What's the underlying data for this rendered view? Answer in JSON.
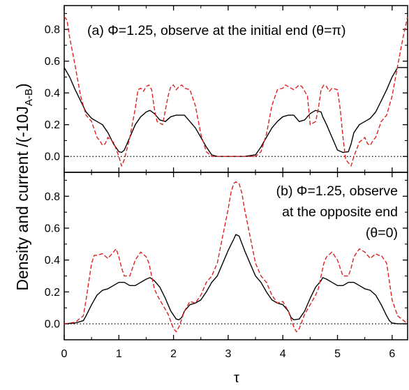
{
  "chart_data": [
    {
      "type": "line",
      "annotation": "(a) Φ=1.25, observe at the initial end (θ=π)",
      "annotation_lines": [
        "(a) Φ=1.25, observe at the initial end (θ=π)"
      ],
      "xlim": [
        0,
        6.283
      ],
      "ylim": [
        -0.1,
        0.95
      ],
      "xticks": [
        0,
        1,
        2,
        3,
        4,
        5,
        6
      ],
      "xtick_labels": [
        "",
        "",
        "",
        "",
        "",
        "",
        ""
      ],
      "yticks": [
        0.0,
        0.2,
        0.4,
        0.6,
        0.8
      ],
      "ytick_labels": [
        "0.0",
        "0.2",
        "0.4",
        "0.6",
        "0.8"
      ],
      "reference_line": {
        "y": 0,
        "style": "dotted"
      },
      "series": [
        {
          "color": "#000000",
          "dash": "solid",
          "width": 1.4,
          "x": [
            0,
            0.1,
            0.2,
            0.3,
            0.4,
            0.5,
            0.6,
            0.7,
            0.8,
            0.9,
            1.0,
            1.05,
            1.1,
            1.2,
            1.3,
            1.4,
            1.5,
            1.57,
            1.65,
            1.75,
            1.85,
            1.95,
            2.05,
            2.1,
            2.2,
            2.3,
            2.4,
            2.5,
            2.6,
            2.7,
            2.8,
            3.0,
            3.14,
            3.3,
            3.5,
            3.6,
            3.7,
            3.8,
            3.9,
            4.0,
            4.1,
            4.2,
            4.3,
            4.4,
            4.5,
            4.6,
            4.7,
            4.73,
            4.8,
            4.9,
            5.0,
            5.1,
            5.2,
            5.25,
            5.3,
            5.4,
            5.5,
            5.6,
            5.7,
            5.8,
            5.9,
            6.0,
            6.1,
            6.2,
            6.283
          ],
          "y": [
            0.56,
            0.5,
            0.42,
            0.35,
            0.28,
            0.24,
            0.22,
            0.2,
            0.15,
            0.08,
            0.03,
            0.025,
            0.04,
            0.12,
            0.2,
            0.25,
            0.28,
            0.29,
            0.27,
            0.23,
            0.22,
            0.25,
            0.26,
            0.26,
            0.26,
            0.22,
            0.18,
            0.12,
            0.06,
            0.01,
            0.0,
            0.0,
            0.0,
            0.0,
            0.01,
            0.06,
            0.12,
            0.18,
            0.22,
            0.25,
            0.26,
            0.26,
            0.22,
            0.23,
            0.27,
            0.29,
            0.28,
            0.25,
            0.2,
            0.12,
            0.04,
            0.025,
            0.03,
            0.08,
            0.15,
            0.2,
            0.22,
            0.24,
            0.28,
            0.35,
            0.42,
            0.5,
            0.56,
            0.56,
            0.56
          ]
        },
        {
          "color": "#e02020",
          "dash": "dashed",
          "width": 1.4,
          "x": [
            0,
            0.05,
            0.1,
            0.2,
            0.3,
            0.4,
            0.5,
            0.6,
            0.65,
            0.7,
            0.75,
            0.8,
            0.9,
            1.0,
            1.05,
            1.1,
            1.2,
            1.3,
            1.35,
            1.4,
            1.45,
            1.5,
            1.55,
            1.6,
            1.65,
            1.7,
            1.8,
            1.9,
            1.95,
            2.0,
            2.05,
            2.1,
            2.15,
            2.2,
            2.3,
            2.4,
            2.5,
            2.6,
            2.7,
            2.8,
            3.0,
            3.14,
            3.3,
            3.5,
            3.6,
            3.7,
            3.8,
            3.9,
            4.0,
            4.05,
            4.1,
            4.2,
            4.3,
            4.35,
            4.45,
            4.5,
            4.6,
            4.65,
            4.7,
            4.75,
            4.8,
            4.85,
            4.9,
            5.0,
            5.05,
            5.1,
            5.15,
            5.25,
            5.3,
            5.4,
            5.5,
            5.55,
            5.6,
            5.65,
            5.7,
            5.8,
            5.9,
            6.0,
            6.1,
            6.2,
            6.283
          ],
          "y": [
            0.88,
            0.86,
            0.75,
            0.57,
            0.38,
            0.26,
            0.22,
            0.12,
            0.1,
            0.07,
            0.08,
            0.12,
            0.09,
            0.0,
            -0.06,
            -0.02,
            0.12,
            0.3,
            0.42,
            0.43,
            0.41,
            0.44,
            0.45,
            0.42,
            0.3,
            0.22,
            0.2,
            0.38,
            0.44,
            0.45,
            0.42,
            0.44,
            0.45,
            0.43,
            0.42,
            0.32,
            0.14,
            0.03,
            0.0,
            0.0,
            0.0,
            0.0,
            0.0,
            0.0,
            0.03,
            0.14,
            0.32,
            0.42,
            0.43,
            0.45,
            0.44,
            0.42,
            0.45,
            0.44,
            0.38,
            0.2,
            0.22,
            0.3,
            0.42,
            0.45,
            0.44,
            0.41,
            0.43,
            0.42,
            0.3,
            0.12,
            -0.02,
            -0.06,
            0.0,
            0.09,
            0.12,
            0.08,
            0.07,
            0.1,
            0.12,
            0.22,
            0.26,
            0.38,
            0.57,
            0.75,
            0.88
          ]
        }
      ]
    },
    {
      "type": "line",
      "annotation": "(b) Φ=1.25, observe at the opposite end (θ=0)",
      "annotation_lines": [
        "(b) Φ=1.25, observe",
        "at the opposite end",
        "(θ=0)"
      ],
      "xlim": [
        0,
        6.283
      ],
      "ylim": [
        -0.1,
        0.95
      ],
      "xticks": [
        0,
        1,
        2,
        3,
        4,
        5,
        6
      ],
      "xtick_labels": [
        "0",
        "1",
        "2",
        "3",
        "4",
        "5",
        "6"
      ],
      "yticks": [
        0.0,
        0.2,
        0.4,
        0.6,
        0.8
      ],
      "ytick_labels": [
        "0.0",
        "0.2",
        "0.4",
        "0.6",
        "0.8"
      ],
      "reference_line": {
        "y": 0,
        "style": "dotted"
      },
      "series": [
        {
          "color": "#000000",
          "dash": "solid",
          "width": 1.4,
          "x": [
            0,
            0.2,
            0.35,
            0.4,
            0.5,
            0.6,
            0.7,
            0.8,
            0.9,
            1.0,
            1.1,
            1.2,
            1.3,
            1.4,
            1.5,
            1.57,
            1.65,
            1.75,
            1.85,
            1.95,
            2.05,
            2.1,
            2.15,
            2.2,
            2.3,
            2.4,
            2.5,
            2.6,
            2.7,
            2.8,
            2.9,
            3.0,
            3.1,
            3.14,
            3.2,
            3.3,
            3.4,
            3.5,
            3.6,
            3.7,
            3.8,
            3.9,
            4.0,
            4.1,
            4.15,
            4.2,
            4.3,
            4.4,
            4.5,
            4.6,
            4.7,
            4.73,
            4.8,
            4.9,
            5.0,
            5.1,
            5.2,
            5.3,
            5.4,
            5.5,
            5.6,
            5.7,
            5.8,
            5.9,
            5.95,
            6.0,
            6.1,
            6.283
          ],
          "y": [
            0.0,
            0.005,
            0.02,
            0.05,
            0.12,
            0.18,
            0.21,
            0.22,
            0.24,
            0.26,
            0.26,
            0.24,
            0.24,
            0.26,
            0.28,
            0.29,
            0.27,
            0.23,
            0.16,
            0.08,
            0.03,
            0.025,
            0.04,
            0.08,
            0.12,
            0.13,
            0.15,
            0.2,
            0.26,
            0.3,
            0.38,
            0.46,
            0.53,
            0.56,
            0.55,
            0.46,
            0.38,
            0.3,
            0.26,
            0.2,
            0.15,
            0.13,
            0.12,
            0.08,
            0.04,
            0.025,
            0.03,
            0.08,
            0.16,
            0.23,
            0.27,
            0.29,
            0.28,
            0.26,
            0.24,
            0.24,
            0.26,
            0.26,
            0.24,
            0.22,
            0.21,
            0.18,
            0.12,
            0.05,
            0.02,
            0.005,
            0.0,
            0.0
          ]
        },
        {
          "color": "#e02020",
          "dash": "dashed",
          "width": 1.4,
          "x": [
            0,
            0.2,
            0.35,
            0.4,
            0.5,
            0.55,
            0.6,
            0.7,
            0.8,
            0.9,
            0.95,
            1.0,
            1.05,
            1.1,
            1.2,
            1.3,
            1.4,
            1.5,
            1.55,
            1.6,
            1.65,
            1.7,
            1.8,
            1.9,
            2.0,
            2.05,
            2.1,
            2.2,
            2.3,
            2.4,
            2.5,
            2.6,
            2.7,
            2.8,
            2.9,
            3.0,
            3.05,
            3.1,
            3.14,
            3.2,
            3.25,
            3.3,
            3.4,
            3.5,
            3.6,
            3.7,
            3.8,
            3.9,
            4.0,
            4.1,
            4.2,
            4.25,
            4.3,
            4.4,
            4.5,
            4.6,
            4.65,
            4.7,
            4.75,
            4.8,
            4.9,
            5.0,
            5.1,
            5.2,
            5.25,
            5.3,
            5.4,
            5.5,
            5.6,
            5.7,
            5.75,
            5.8,
            5.9,
            6.0,
            6.1,
            6.283
          ],
          "y": [
            0.0,
            0.01,
            0.05,
            0.15,
            0.38,
            0.43,
            0.43,
            0.44,
            0.41,
            0.45,
            0.47,
            0.42,
            0.35,
            0.3,
            0.3,
            0.4,
            0.45,
            0.42,
            0.38,
            0.3,
            0.22,
            0.18,
            0.12,
            0.06,
            -0.03,
            -0.05,
            -0.02,
            0.08,
            0.14,
            0.13,
            0.18,
            0.26,
            0.3,
            0.38,
            0.55,
            0.72,
            0.82,
            0.88,
            0.89,
            0.88,
            0.82,
            0.72,
            0.55,
            0.38,
            0.3,
            0.26,
            0.18,
            0.13,
            0.14,
            0.08,
            -0.02,
            -0.05,
            -0.03,
            0.06,
            0.12,
            0.18,
            0.22,
            0.3,
            0.38,
            0.42,
            0.45,
            0.4,
            0.3,
            0.3,
            0.35,
            0.42,
            0.47,
            0.45,
            0.41,
            0.44,
            0.43,
            0.43,
            0.38,
            0.15,
            0.05,
            0.0
          ]
        }
      ]
    }
  ],
  "y_axis_label_main": "Density and current /(-10J",
  "y_axis_label_sub": "A-B",
  "y_axis_label_close": ")",
  "x_axis_label": "τ"
}
